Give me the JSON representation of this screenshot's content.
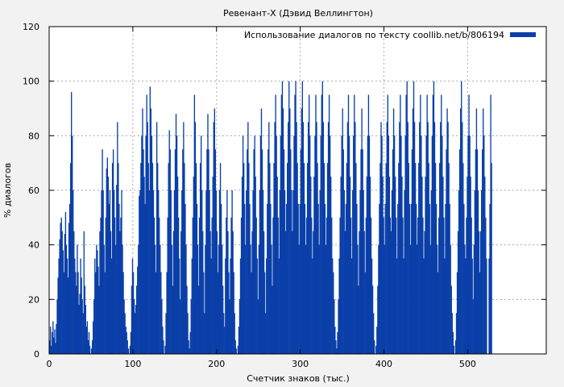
{
  "chart_data": {
    "type": "bar",
    "title": "Ревенант-X (Дэвид Веллингтон)",
    "xlabel": "Счетчик знаков (тыс.)",
    "ylabel": "% диалогов",
    "xlim": [
      0,
      594
    ],
    "ylim": [
      0,
      120
    ],
    "xticks": [
      0,
      100,
      200,
      300,
      400,
      500
    ],
    "yticks": [
      0,
      20,
      40,
      60,
      80,
      100,
      120
    ],
    "x_step": 1,
    "grid": true,
    "legend": {
      "position": "top-right",
      "entries": [
        "Использование диалогов по тексту coollib.net/b/806194"
      ]
    },
    "colors": {
      "bar": "#0a3fa8",
      "background": "#f2f2f2",
      "plot_background": "#ffffff",
      "grid": "#aaaaaa"
    },
    "series": [
      {
        "name": "Использование диалогов по тексту coollib.net/b/806194",
        "values": [
          5,
          10,
          3,
          8,
          12,
          6,
          9,
          4,
          11,
          20,
          28,
          35,
          42,
          48,
          50,
          45,
          38,
          30,
          44,
          52,
          40,
          35,
          28,
          48,
          55,
          70,
          96,
          80,
          60,
          45,
          35,
          30,
          25,
          40,
          30,
          18,
          22,
          35,
          28,
          20,
          15,
          45,
          25,
          18,
          10,
          12,
          5,
          8,
          3,
          0,
          2,
          5,
          12,
          20,
          35,
          30,
          40,
          38,
          32,
          25,
          45,
          50,
          60,
          75,
          60,
          40,
          30,
          50,
          68,
          72,
          65,
          55,
          60,
          45,
          35,
          70,
          75,
          60,
          50,
          40,
          62,
          85,
          70,
          55,
          45,
          50,
          60,
          40,
          30,
          20,
          15,
          10,
          8,
          5,
          2,
          0,
          3,
          8,
          25,
          35,
          30,
          20,
          15,
          18,
          25,
          32,
          40,
          58,
          60,
          70,
          80,
          90,
          75,
          65,
          55,
          80,
          95,
          85,
          70,
          60,
          98,
          90,
          80,
          70,
          60,
          50,
          40,
          30,
          85,
          70,
          60,
          50,
          40,
          30,
          20,
          10,
          5,
          0,
          3,
          15,
          30,
          50,
          70,
          82,
          75,
          60,
          40,
          25,
          45,
          60,
          75,
          88,
          80,
          65,
          50,
          35,
          20,
          45,
          60,
          75,
          85,
          70,
          55,
          40,
          25,
          15,
          5,
          2,
          8,
          20,
          35,
          50,
          65,
          95,
          85,
          70,
          55,
          40,
          25,
          50,
          70,
          80,
          60,
          45,
          30,
          15,
          40,
          60,
          75,
          88,
          75,
          60,
          45,
          35,
          50,
          65,
          85,
          90,
          75,
          60,
          45,
          30,
          40,
          60,
          70,
          55,
          40,
          25,
          15,
          10,
          35,
          50,
          60,
          45,
          30,
          20,
          35,
          50,
          60,
          45,
          30,
          15,
          5,
          2,
          0,
          3,
          10,
          20,
          35,
          50,
          65,
          80,
          70,
          55,
          40,
          60,
          75,
          85,
          70,
          55,
          40,
          30,
          45,
          60,
          75,
          80,
          65,
          50,
          35,
          20,
          40,
          60,
          80,
          90,
          75,
          60,
          45,
          30,
          15,
          35,
          55,
          75,
          85,
          70,
          55,
          40,
          25,
          50,
          70,
          85,
          95,
          80,
          65,
          50,
          35,
          60,
          80,
          95,
          100,
          90,
          75,
          60,
          45,
          55,
          70,
          85,
          100,
          90,
          75,
          60,
          45,
          60,
          80,
          95,
          100,
          85,
          70,
          55,
          40,
          55,
          75,
          90,
          100,
          85,
          70,
          55,
          40,
          50,
          70,
          85,
          95,
          80,
          65,
          50,
          35,
          45,
          65,
          80,
          95,
          85,
          70,
          55,
          40,
          60,
          80,
          95,
          100,
          85,
          70,
          55,
          40,
          50,
          70,
          85,
          95,
          80,
          65,
          50,
          35,
          30,
          20,
          10,
          5,
          2,
          8,
          20,
          35,
          50,
          65,
          80,
          90,
          75,
          60,
          45,
          55,
          70,
          85,
          95,
          80,
          65,
          50,
          35,
          60,
          80,
          95,
          85,
          70,
          55,
          40,
          25,
          45,
          60,
          75,
          90,
          75,
          60,
          45,
          30,
          50,
          65,
          80,
          95,
          80,
          65,
          50,
          35,
          25,
          15,
          5,
          0,
          3,
          10,
          25,
          40,
          55,
          70,
          85,
          80,
          65,
          50,
          40,
          55,
          70,
          85,
          95,
          80,
          65,
          50,
          45,
          60,
          75,
          90,
          80,
          65,
          50,
          35,
          55,
          70,
          85,
          95,
          80,
          65,
          50,
          35,
          60,
          80,
          95,
          100,
          85,
          70,
          55,
          40,
          55,
          75,
          90,
          100,
          85,
          70,
          55,
          40,
          50,
          70,
          85,
          95,
          80,
          65,
          50,
          35,
          45,
          65,
          80,
          95,
          85,
          70,
          55,
          40,
          60,
          80,
          95,
          100,
          85,
          70,
          55,
          40,
          30,
          50,
          70,
          85,
          95,
          80,
          65,
          50,
          35,
          55,
          75,
          90,
          85,
          70,
          55,
          40,
          25,
          15,
          8,
          3,
          0,
          5,
          15,
          30,
          45,
          60,
          75,
          90,
          100,
          85,
          70,
          55,
          40,
          35,
          50,
          65,
          80,
          95,
          80,
          65,
          50,
          35,
          20,
          40,
          60,
          75,
          90,
          75,
          60,
          45,
          30,
          45,
          60,
          75,
          90,
          80,
          65,
          50,
          35,
          0,
          0,
          35,
          55,
          95,
          70
        ]
      }
    ]
  }
}
